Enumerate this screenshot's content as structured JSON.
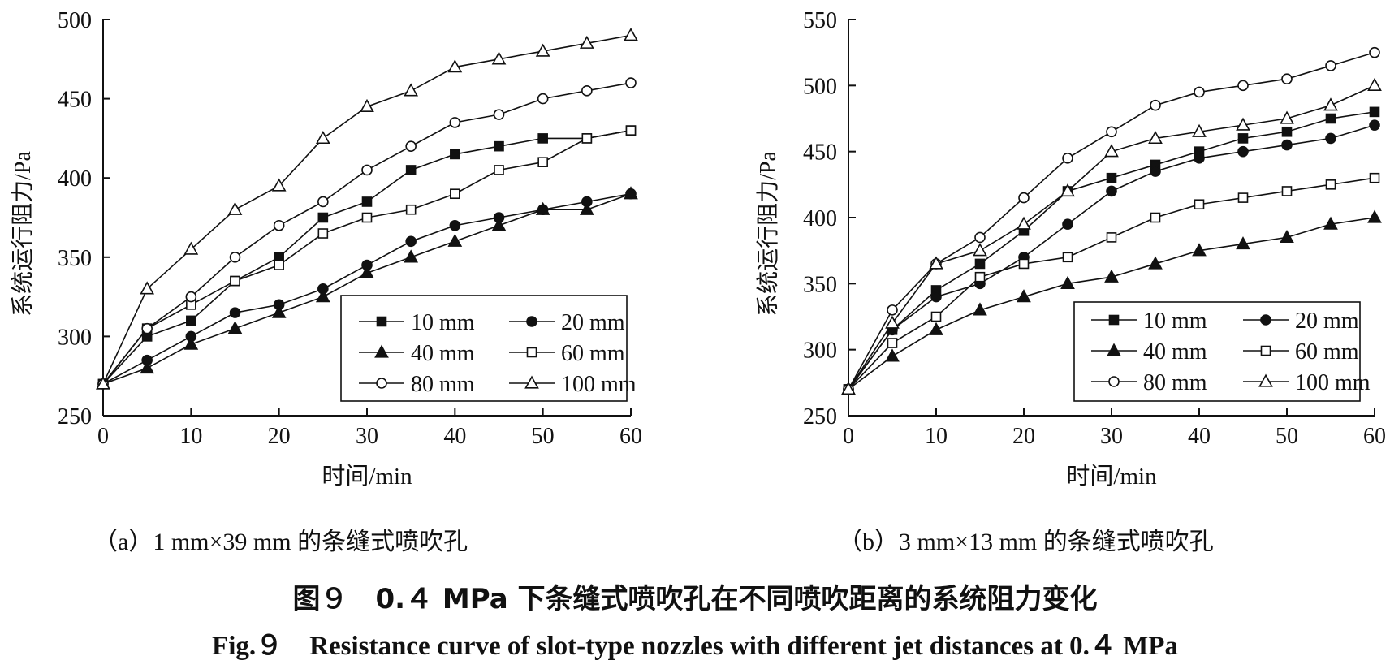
{
  "figure": {
    "caption_cn": "图９　0.４ MPa 下条缝式喷吹孔在不同喷吹距离的系统阻力变化",
    "caption_en": "Fig.９　Resistance curve of slot-type nozzles with different jet distances at 0.４ MPa"
  },
  "chart_data": [
    {
      "type": "line",
      "subcaption": "（a）1 mm×39 mm 的条缝式喷吹孔",
      "xlabel": "时间/min",
      "ylabel": "系统运行阻力/Pa",
      "xlim": [
        0,
        60
      ],
      "ylim": [
        250,
        500
      ],
      "xticks": [
        0,
        10,
        20,
        30,
        40,
        50,
        60
      ],
      "yticks": [
        250,
        300,
        350,
        400,
        450,
        500
      ],
      "x": [
        0,
        5,
        10,
        15,
        20,
        25,
        30,
        35,
        40,
        45,
        50,
        55,
        60
      ],
      "legend_position": "bottom-right",
      "series": [
        {
          "name": "10 mm",
          "marker": "square-filled",
          "values": [
            270,
            300,
            310,
            335,
            350,
            375,
            385,
            405,
            415,
            420,
            425,
            425,
            430
          ]
        },
        {
          "name": "20 mm",
          "marker": "circle-filled",
          "values": [
            270,
            285,
            300,
            315,
            320,
            330,
            345,
            360,
            370,
            375,
            380,
            385,
            390
          ]
        },
        {
          "name": "40 mm",
          "marker": "triangle-filled",
          "values": [
            270,
            280,
            295,
            305,
            315,
            325,
            340,
            350,
            360,
            370,
            380,
            380,
            390
          ]
        },
        {
          "name": "60 mm",
          "marker": "square-open",
          "values": [
            270,
            305,
            320,
            335,
            345,
            365,
            375,
            380,
            390,
            405,
            410,
            425,
            430
          ]
        },
        {
          "name": "80 mm",
          "marker": "circle-open",
          "values": [
            270,
            305,
            325,
            350,
            370,
            385,
            405,
            420,
            435,
            440,
            450,
            455,
            460
          ]
        },
        {
          "name": "100 mm",
          "marker": "triangle-open",
          "values": [
            270,
            330,
            355,
            380,
            395,
            425,
            445,
            455,
            470,
            475,
            480,
            485,
            490
          ]
        }
      ]
    },
    {
      "type": "line",
      "subcaption": "（b）3 mm×13 mm 的条缝式喷吹孔",
      "xlabel": "时间/min",
      "ylabel": "系统运行阻力/Pa",
      "xlim": [
        0,
        60
      ],
      "ylim": [
        250,
        550
      ],
      "xticks": [
        0,
        10,
        20,
        30,
        40,
        50,
        60
      ],
      "yticks": [
        250,
        300,
        350,
        400,
        450,
        500,
        550
      ],
      "x": [
        0,
        5,
        10,
        15,
        20,
        25,
        30,
        35,
        40,
        45,
        50,
        55,
        60
      ],
      "legend_position": "bottom-right",
      "series": [
        {
          "name": "10 mm",
          "marker": "square-filled",
          "values": [
            270,
            315,
            345,
            365,
            390,
            420,
            430,
            440,
            450,
            460,
            465,
            475,
            480
          ]
        },
        {
          "name": "20 mm",
          "marker": "circle-filled",
          "values": [
            270,
            315,
            340,
            350,
            370,
            395,
            420,
            435,
            445,
            450,
            455,
            460,
            470
          ]
        },
        {
          "name": "40 mm",
          "marker": "triangle-filled",
          "values": [
            270,
            295,
            315,
            330,
            340,
            350,
            355,
            365,
            375,
            380,
            385,
            395,
            400
          ]
        },
        {
          "name": "60 mm",
          "marker": "square-open",
          "values": [
            270,
            305,
            325,
            355,
            365,
            370,
            385,
            400,
            410,
            415,
            420,
            425,
            430
          ]
        },
        {
          "name": "80 mm",
          "marker": "circle-open",
          "values": [
            270,
            330,
            365,
            385,
            415,
            445,
            465,
            485,
            495,
            500,
            505,
            515,
            525
          ]
        },
        {
          "name": "100 mm",
          "marker": "triangle-open",
          "values": [
            270,
            320,
            365,
            375,
            395,
            420,
            450,
            460,
            465,
            470,
            475,
            485,
            500
          ]
        }
      ]
    }
  ]
}
